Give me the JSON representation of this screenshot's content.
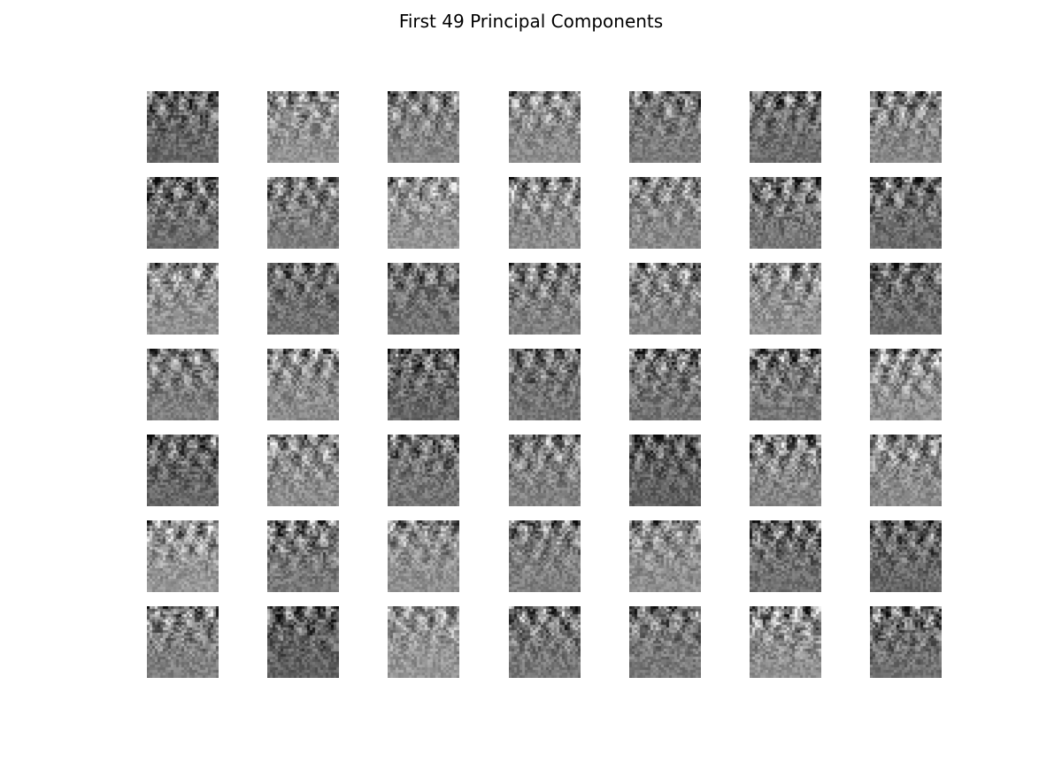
{
  "figure": {
    "title": "First 49 Principal Components",
    "background": "#ffffff",
    "colormap": "gray",
    "rows": 7,
    "cols": 7,
    "component_count": 49
  }
}
